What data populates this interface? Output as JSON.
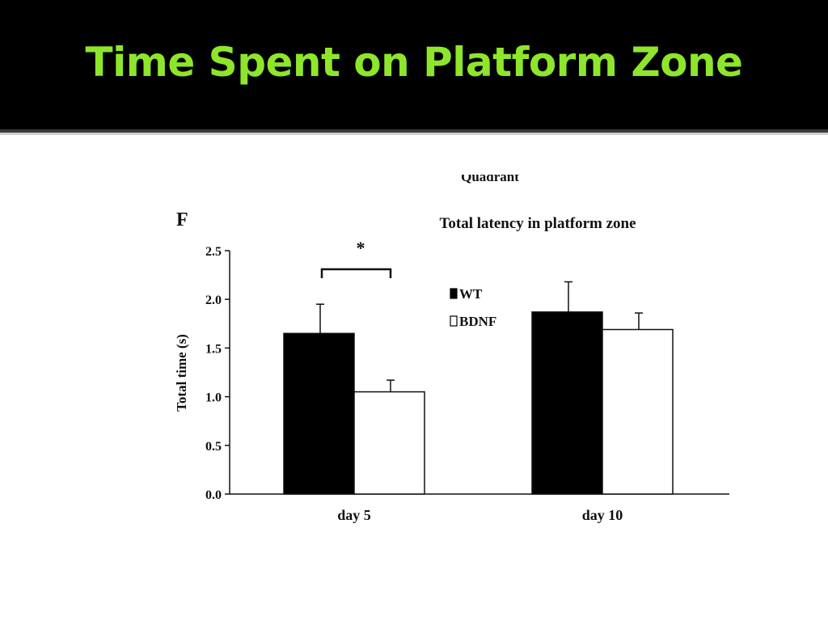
{
  "slide": {
    "title": "Time Spent on Platform Zone",
    "title_color": "#8ee62a",
    "header_background": "#000000"
  },
  "figure": {
    "panel_label": "F",
    "cropped_text": "Quadrant"
  },
  "chart_data": {
    "type": "bar",
    "title": "Total latency in platform zone",
    "xlabel": "",
    "ylabel": "Total time (s)",
    "categories": [
      "day 5",
      "day 10"
    ],
    "series": [
      {
        "name": "WT",
        "values": [
          1.65,
          1.87
        ],
        "errors": [
          0.3,
          0.31
        ],
        "color": "#000000"
      },
      {
        "name": "BDNF",
        "values": [
          1.05,
          1.69
        ],
        "errors": [
          0.12,
          0.17
        ],
        "color": "#ffffff"
      }
    ],
    "ylim": [
      0,
      2.5
    ],
    "yticks": [
      "0.0",
      "0.5",
      "1.0",
      "1.5",
      "2.0",
      "2.5"
    ],
    "legend_position": "top-center",
    "annotations": [
      {
        "text": "*",
        "type": "significance-bracket",
        "between": [
          "WT day 5",
          "BDNF day 5"
        ]
      }
    ],
    "grid": false
  }
}
